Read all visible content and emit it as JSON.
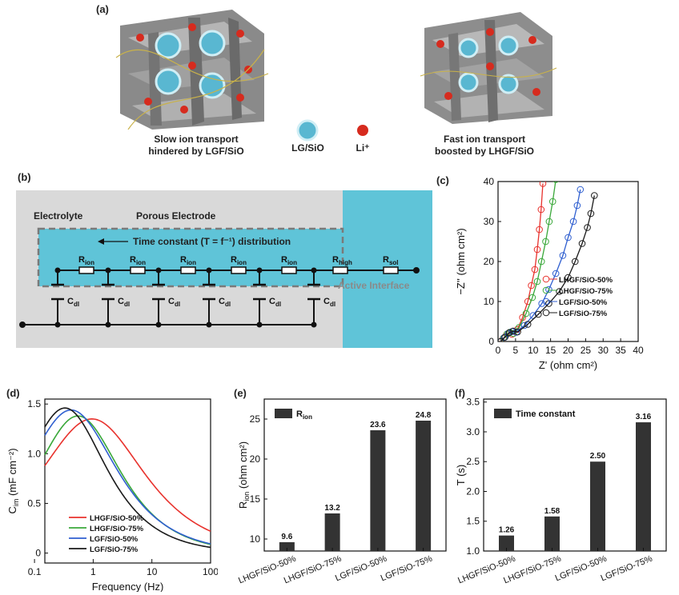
{
  "panel_a": {
    "label": "(a)",
    "left_caption_1": "Slow ion transport",
    "left_caption_2": "hindered by LGF/SiO",
    "right_caption_1": "Fast ion transport",
    "right_caption_2": "boosted by LHGF/SiO",
    "legend_lg": "LG/SiO",
    "legend_li": "Li⁺"
  },
  "panel_b": {
    "label": "(b)",
    "electrolyte": "Electrolyte",
    "porous_electrode": "Porous Electrode",
    "time_constant": "Time constant (T = f⁻¹) distribution",
    "active_interface": "Active Interface",
    "r_ion": "R",
    "r_ion_sub": "ion",
    "r_high_sub": "high",
    "r_sol_sub": "sol",
    "c_dl": "C",
    "c_dl_sub": "dl"
  },
  "colors": {
    "red": "#e8322d",
    "green": "#3aa83a",
    "blue": "#2f5fd0",
    "black": "#1a1a1a",
    "cyan": "#5fc4d8",
    "grey": "#d9d9d9",
    "bar": "#333333"
  },
  "chart_data": [
    {
      "panel": "(c)",
      "type": "scatter",
      "xlabel": "Z' (ohm cm²)",
      "ylabel": "−Z'' (ohm cm²)",
      "xlim": [
        0,
        40
      ],
      "ylim": [
        0,
        40
      ],
      "xticks": [
        "0",
        "5",
        "10",
        "15",
        "20",
        "25",
        "30",
        "35",
        "40"
      ],
      "yticks": [
        "0",
        "10",
        "20",
        "30",
        "40"
      ],
      "legend_position": "center-right",
      "series": [
        {
          "name": "LHGF/SiO-50%",
          "color": "red",
          "points": [
            [
              0.5,
              0
            ],
            [
              1.5,
              0.8
            ],
            [
              2.5,
              1.8
            ],
            [
              3.2,
              2.2
            ],
            [
              4.0,
              1.8
            ],
            [
              5.5,
              3
            ],
            [
              7,
              6
            ],
            [
              8.5,
              10
            ],
            [
              9.5,
              14
            ],
            [
              10.5,
              18
            ],
            [
              11.2,
              23
            ],
            [
              11.8,
              28
            ],
            [
              12.3,
              33
            ],
            [
              12.8,
              39.5
            ]
          ]
        },
        {
          "name": "LHGF/SiO-75%",
          "color": "green",
          "points": [
            [
              0.6,
              0
            ],
            [
              1.6,
              0.9
            ],
            [
              2.6,
              1.9
            ],
            [
              3.4,
              2.3
            ],
            [
              4.4,
              2
            ],
            [
              6,
              3.5
            ],
            [
              8,
              7
            ],
            [
              9.8,
              11
            ],
            [
              11.2,
              15
            ],
            [
              12.4,
              20
            ],
            [
              13.6,
              25
            ],
            [
              14.6,
              30
            ],
            [
              15.6,
              35
            ],
            [
              16.5,
              40.5
            ]
          ]
        },
        {
          "name": "LGF/SiO-50%",
          "color": "blue",
          "points": [
            [
              0.7,
              0
            ],
            [
              1.8,
              1
            ],
            [
              3,
              2.1
            ],
            [
              4,
              2.5
            ],
            [
              5.2,
              2.3
            ],
            [
              7.5,
              4
            ],
            [
              10,
              6.5
            ],
            [
              12.5,
              9.5
            ],
            [
              14.5,
              13
            ],
            [
              16.5,
              17
            ],
            [
              18.5,
              21.5
            ],
            [
              20,
              26
            ],
            [
              21.5,
              30
            ],
            [
              22.6,
              34
            ],
            [
              23.5,
              38
            ]
          ]
        },
        {
          "name": "LGF/SiO-75%",
          "color": "black",
          "points": [
            [
              0.8,
              0
            ],
            [
              2,
              1.1
            ],
            [
              3.2,
              2.2
            ],
            [
              4.3,
              2.6
            ],
            [
              5.6,
              2.4
            ],
            [
              8.5,
              4.3
            ],
            [
              11.5,
              6.8
            ],
            [
              14.5,
              9.5
            ],
            [
              17.5,
              12.5
            ],
            [
              20,
              16
            ],
            [
              22,
              20
            ],
            [
              24,
              24.5
            ],
            [
              25.5,
              28.5
            ],
            [
              26.5,
              32
            ],
            [
              27.5,
              36.5
            ]
          ]
        }
      ]
    },
    {
      "panel": "(d)",
      "type": "line",
      "xlabel": "Frequency (Hz)",
      "ylabel": "C",
      "ylabel_sub": "im",
      "ylabel_unit": "(mF cm⁻²)",
      "xscale": "log",
      "xlim": [
        0.15,
        100
      ],
      "ylim": [
        -0.1,
        1.55
      ],
      "xticks": [
        "0.1",
        "1",
        "10",
        "100"
      ],
      "yticks": [
        "0",
        "0.5",
        "1.0",
        "1.5"
      ],
      "legend_position": "lower-left",
      "series": [
        {
          "name": "LHGF/SiO-50%",
          "color": "red",
          "peak_f": 0.95,
          "peak": 1.35,
          "width": 1.05,
          "start": 0.36
        },
        {
          "name": "LHGF/SiO-75%",
          "color": "green",
          "peak_f": 0.55,
          "peak": 1.38,
          "width": 0.85,
          "start": 0.24
        },
        {
          "name": "LGF/SiO-50%",
          "color": "blue",
          "peak_f": 0.42,
          "peak": 1.44,
          "width": 0.9,
          "start": 0.45
        },
        {
          "name": "LGF/SiO-75%",
          "color": "black",
          "peak_f": 0.33,
          "peak": 1.46,
          "width": 0.82,
          "start": 0.3
        }
      ]
    },
    {
      "panel": "(e)",
      "type": "bar",
      "legend": "R",
      "legend_sub": "ion",
      "ylabel": "R",
      "ylabel_sub": "ion",
      "ylabel_unit": "(ohm cm²)",
      "ylim": [
        8.5,
        27.5
      ],
      "yticks": [
        "10",
        "15",
        "20",
        "25"
      ],
      "categories": [
        "LHGF/SiO-50%",
        "LHGF/SiO-75%",
        "LGF/SiO-50%",
        "LGF/SiO-75%"
      ],
      "values": [
        9.6,
        13.2,
        23.6,
        24.8
      ],
      "labels": [
        "9.6",
        "13.2",
        "23.6",
        "24.8"
      ]
    },
    {
      "panel": "(f)",
      "type": "bar",
      "legend": "Time constant",
      "ylabel": "T (s)",
      "ylim": [
        1.0,
        3.55
      ],
      "yticks": [
        "1.0",
        "1.5",
        "2.0",
        "2.5",
        "3.0",
        "3.5"
      ],
      "categories": [
        "LHGF/SiO-50%",
        "LHGF/SiO-75%",
        "LGF/SiO-50%",
        "LGF/SiO-75%"
      ],
      "values": [
        1.26,
        1.58,
        2.5,
        3.16
      ],
      "labels": [
        "1.26",
        "1.58",
        "2.50",
        "3.16"
      ]
    }
  ]
}
